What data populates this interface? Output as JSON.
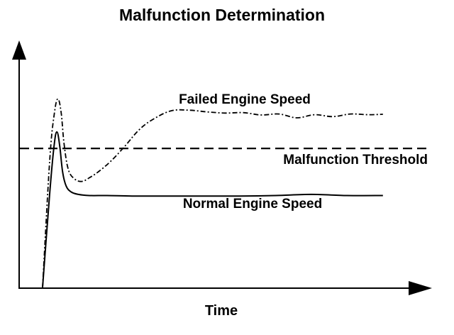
{
  "chart_data": {
    "type": "line",
    "title": "Malfunction Determination",
    "xlabel": "Time",
    "ylabel": "",
    "xlim": [
      0,
      100
    ],
    "ylim": [
      0,
      100
    ],
    "grid": false,
    "legend": "none",
    "threshold": {
      "name": "Malfunction Threshold",
      "value": 59,
      "style": "dashed"
    },
    "series": [
      {
        "name": "Failed Engine Speed",
        "style": "dash-dot",
        "color": "#000000",
        "x": [
          0,
          2,
          3.3,
          4.3,
          5.2,
          6,
          7.2,
          9,
          11,
          13,
          15.5,
          19,
          23,
          27,
          31,
          36,
          41,
          46,
          51,
          56,
          61,
          66,
          71,
          76,
          81,
          86,
          91,
          95
        ],
        "y": [
          0,
          54,
          74,
          80,
          74,
          61,
          50,
          46,
          45,
          46.5,
          49,
          53.5,
          60,
          67,
          71.5,
          75,
          75.2,
          74.5,
          74,
          74.2,
          73.2,
          73.6,
          72,
          73.3,
          72.5,
          73.6,
          73.3,
          73.5
        ]
      },
      {
        "name": "Normal Engine Speed",
        "style": "solid",
        "color": "#000000",
        "x": [
          0,
          2,
          3.2,
          4,
          4.8,
          5.6,
          6.6,
          8,
          10,
          13,
          18,
          25,
          35,
          45,
          55,
          65,
          75,
          85,
          95
        ],
        "y": [
          0,
          40,
          60,
          66,
          60,
          49,
          43,
          40.5,
          39.5,
          39,
          39,
          38.8,
          38.8,
          38.8,
          38.8,
          39,
          39.5,
          39,
          39
        ]
      }
    ]
  }
}
